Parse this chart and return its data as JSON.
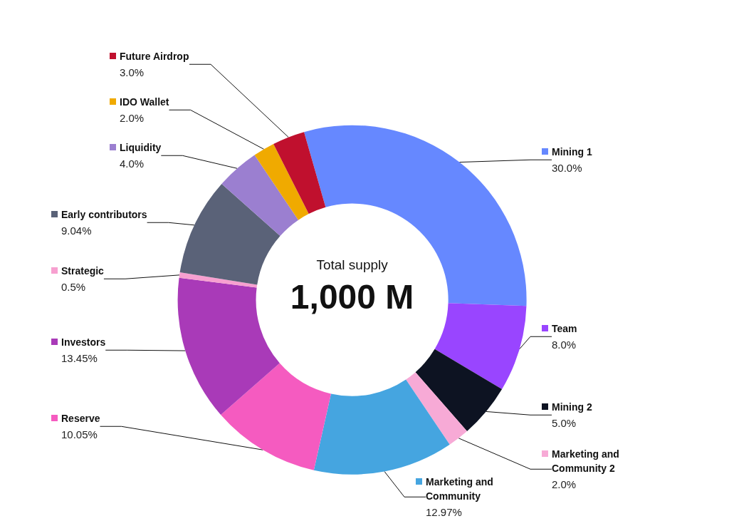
{
  "chart_data": {
    "type": "donut",
    "categories": [
      "Mining 1",
      "Team",
      "Mining 2",
      "Marketing and Community 2",
      "Marketing and Community",
      "Reserve",
      "Investors",
      "Strategic",
      "Early contributors",
      "Liquidity",
      "IDO Wallet",
      "Future Airdrop"
    ],
    "values": [
      30.0,
      8.0,
      5.0,
      2.0,
      12.97,
      10.05,
      13.45,
      0.5,
      9.04,
      4.0,
      2.0,
      3.0
    ],
    "value_labels": [
      "30.0%",
      "8.0%",
      "5.0%",
      "2.0%",
      "12.97%",
      "10.05%",
      "13.45%",
      "0.5%",
      "9.04%",
      "4.0%",
      "2.0%",
      "3.0%"
    ],
    "colors": [
      "#6688ff",
      "#9945ff",
      "#0d1322",
      "#f7aad6",
      "#45a5e0",
      "#f55bc0",
      "#a93ab8",
      "#f7a0d0",
      "#5a6278",
      "#9b7fd0",
      "#f0aa00",
      "#c0102e"
    ],
    "annotations": [
      "Total supply",
      "1,000 M"
    ],
    "legend": "left"
  }
}
